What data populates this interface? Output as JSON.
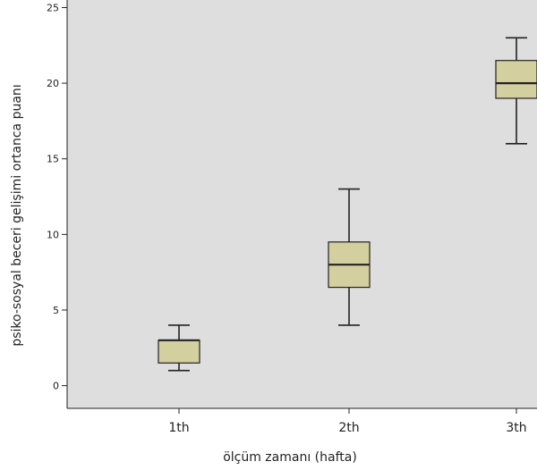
{
  "chart_data": {
    "type": "box",
    "title": "",
    "xlabel": "ölçüm zamanı (hafta)",
    "ylabel": "psiko-sosyal beceri gelişimi ortanca puanı",
    "ylim": [
      -1.5,
      25.5
    ],
    "yticks": [
      "0",
      "5",
      "10",
      "15",
      "20",
      "25"
    ],
    "grid": false,
    "categories": [
      "1th",
      "2th",
      "3th"
    ],
    "boxes": [
      {
        "min": 1,
        "q1": 1.5,
        "median": 3,
        "q3": 3,
        "max": 4
      },
      {
        "min": 4,
        "q1": 6.5,
        "median": 8,
        "q3": 9.5,
        "max": 13
      },
      {
        "min": 16,
        "q1": 19,
        "median": 20,
        "q3": 21.5,
        "max": 23
      }
    ],
    "colors": {
      "plot_background": "#dedede",
      "box_fill": "#d4cf9e",
      "box_stroke": "#222222"
    }
  }
}
